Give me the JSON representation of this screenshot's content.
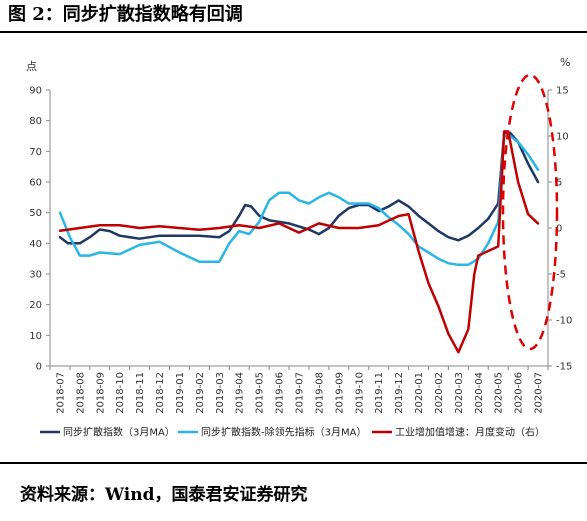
{
  "title": "图 2：同步扩散指数略有回调",
  "source": "资料来源：Wind，国泰君安证券研究",
  "chart_data": {
    "type": "line",
    "left_unit": "点",
    "right_unit": "%",
    "ylim_left": [
      0,
      90
    ],
    "ylim_right": [
      -15,
      15
    ],
    "left_ticks": [
      0,
      10,
      20,
      30,
      40,
      50,
      60,
      70,
      80,
      90
    ],
    "right_ticks": [
      -15,
      -10,
      -5,
      0,
      5,
      10,
      15
    ],
    "categories": [
      "2018-07",
      "2018-08",
      "2018-09",
      "2018-10",
      "2018-11",
      "2018-12",
      "2019-01",
      "2019-02",
      "2019-03",
      "2019-04",
      "2019-05",
      "2019-06",
      "2019-07",
      "2019-08",
      "2019-09",
      "2019-10",
      "2019-11",
      "2019-12",
      "2020-01",
      "2020-02",
      "2020-03",
      "2020-04",
      "2020-05",
      "2020-06",
      "2020-07"
    ],
    "grid": false,
    "legend_position": "bottom",
    "series": [
      {
        "name": "同步扩散指数（3月MA）",
        "axis": "left",
        "color": "#1f3864",
        "x": [
          0,
          0.4,
          1,
          1.5,
          2,
          2.5,
          3,
          4,
          5,
          6,
          7,
          8,
          8.5,
          9,
          9.3,
          9.6,
          10,
          10.5,
          11,
          11.5,
          12,
          12.5,
          13,
          13.5,
          14,
          14.5,
          15,
          15.5,
          16,
          16.5,
          17,
          17.5,
          18,
          18.5,
          19,
          19.5,
          20,
          20.5,
          21,
          21.5,
          22,
          22.3,
          22.6,
          23,
          23.5,
          24
        ],
        "values": [
          42,
          40,
          40,
          42,
          44.5,
          44,
          42.5,
          41.5,
          42.5,
          42.5,
          42.5,
          42,
          44,
          49,
          52.5,
          52,
          49,
          47.5,
          47,
          46.5,
          45.5,
          44.5,
          43,
          45,
          49,
          51.5,
          52.5,
          52.5,
          50.5,
          52,
          54,
          52,
          49,
          46.5,
          44,
          42,
          41,
          42.5,
          45,
          48,
          53,
          76,
          76,
          73,
          66,
          60
        ]
      },
      {
        "name": "同步扩散指数-除领先指标（3月MA）",
        "axis": "left",
        "color": "#29b6e6",
        "x": [
          0,
          0.5,
          1,
          1.5,
          2,
          3,
          4,
          5,
          6,
          7,
          8,
          8.5,
          9,
          9.5,
          10,
          10.5,
          11,
          11.5,
          12,
          12.5,
          13,
          13.5,
          14,
          14.5,
          15,
          15.5,
          16,
          16.5,
          17,
          17.5,
          18,
          18.5,
          19,
          19.5,
          20,
          20.5,
          21,
          21.5,
          22,
          22.3,
          22.6,
          23,
          23.5,
          24
        ],
        "values": [
          50,
          42,
          36,
          36,
          37,
          36.5,
          39.5,
          40.5,
          37,
          34,
          34,
          40,
          44,
          43,
          47,
          54,
          56.5,
          56.5,
          54,
          53,
          55,
          56.5,
          55,
          53,
          53,
          53,
          51.5,
          48.5,
          46,
          43,
          39,
          37,
          35,
          33.5,
          33,
          33,
          35,
          40,
          47,
          75,
          75,
          73,
          69,
          64
        ]
      },
      {
        "name": "工业增加值增速：月度变动（右）",
        "axis": "right",
        "color": "#c00000",
        "x": [
          0,
          1,
          2,
          3,
          4,
          5,
          6,
          7,
          8,
          9,
          10,
          11,
          12,
          13,
          14,
          15,
          16,
          17,
          17.5,
          18,
          18.5,
          19,
          19.5,
          20,
          20.5,
          20.8,
          21,
          21.5,
          22,
          22.3,
          22.5,
          23,
          23.5,
          24
        ],
        "values": [
          -0.3,
          0,
          0.3,
          0.3,
          0,
          0.2,
          0,
          -0.2,
          0,
          0.3,
          0,
          0.5,
          -0.5,
          0.5,
          0,
          0,
          0.3,
          1.3,
          1.5,
          -2.5,
          -6,
          -8.5,
          -11.5,
          -13.5,
          -11,
          -5,
          -3,
          -2.5,
          -2,
          10.5,
          10.5,
          5,
          1.5,
          0.5
        ]
      }
    ]
  }
}
